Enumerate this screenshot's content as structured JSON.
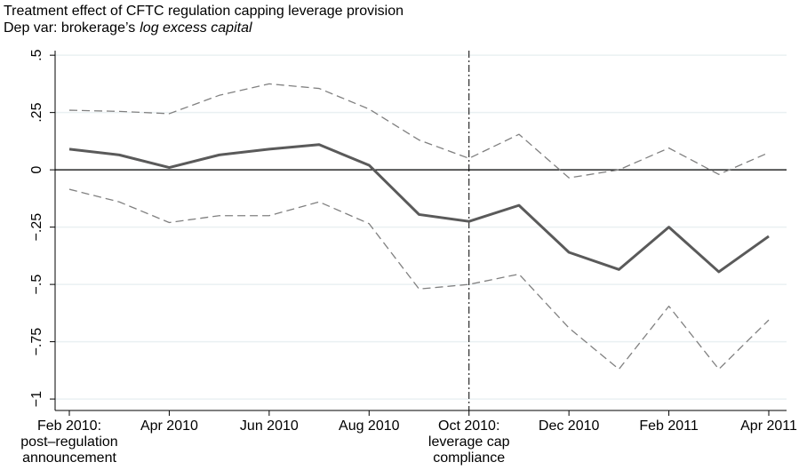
{
  "chart_data": {
    "type": "line",
    "title": "Treatment effect of CFTC regulation capping leverage provision",
    "subtitle": [
      "Dep var: brokerage’s",
      "log excess capital"
    ],
    "categories": [
      [
        "Feb 2010:",
        "post–regulation",
        "announcement"
      ],
      null,
      [
        "Apr 2010"
      ],
      null,
      [
        "Jun 2010"
      ],
      null,
      [
        "Aug 2010"
      ],
      null,
      [
        "Oct 2010:",
        "leverage cap",
        "compliance"
      ],
      null,
      [
        "Dec 2010"
      ],
      null,
      [
        "Feb 2011"
      ],
      null,
      [
        "Apr 2011"
      ]
    ],
    "series": [
      {
        "color": "#5a5a5a",
        "style": "solid",
        "values": [
          0.09,
          0.065,
          0.01,
          0.065,
          0.09,
          0.11,
          0.02,
          -0.195,
          -0.225,
          -0.155,
          -0.36,
          -0.435,
          -0.25,
          -0.445,
          -0.29
        ]
      },
      {
        "color": "#808080",
        "style": "dashed",
        "values": [
          0.26,
          0.255,
          0.245,
          0.325,
          0.375,
          0.355,
          0.265,
          0.13,
          0.05,
          0.155,
          -0.035,
          0.0,
          0.095,
          -0.02,
          0.075
        ]
      },
      {
        "color": "#808080",
        "style": "dashed",
        "values": [
          -0.085,
          -0.14,
          -0.23,
          -0.2,
          -0.2,
          -0.14,
          -0.235,
          -0.52,
          -0.5,
          -0.455,
          -0.69,
          -0.87,
          -0.595,
          -0.87,
          -0.655
        ]
      }
    ],
    "ylim": [
      -1.05,
      0.52
    ],
    "yticks": [
      {
        "value": 0.5,
        "label": ".5"
      },
      {
        "value": 0.25,
        "label": ".25"
      },
      0,
      {
        "value": -0.25,
        "label": "−.25"
      },
      {
        "value": -0.5,
        "label": "−.5"
      },
      {
        "value": -0.75,
        "label": "−.75"
      },
      {
        "value": -1,
        "label": "−1"
      }
    ],
    "grid": true,
    "hline": 0,
    "vline": {
      "at": 8,
      "style": "dash-dot"
    }
  }
}
